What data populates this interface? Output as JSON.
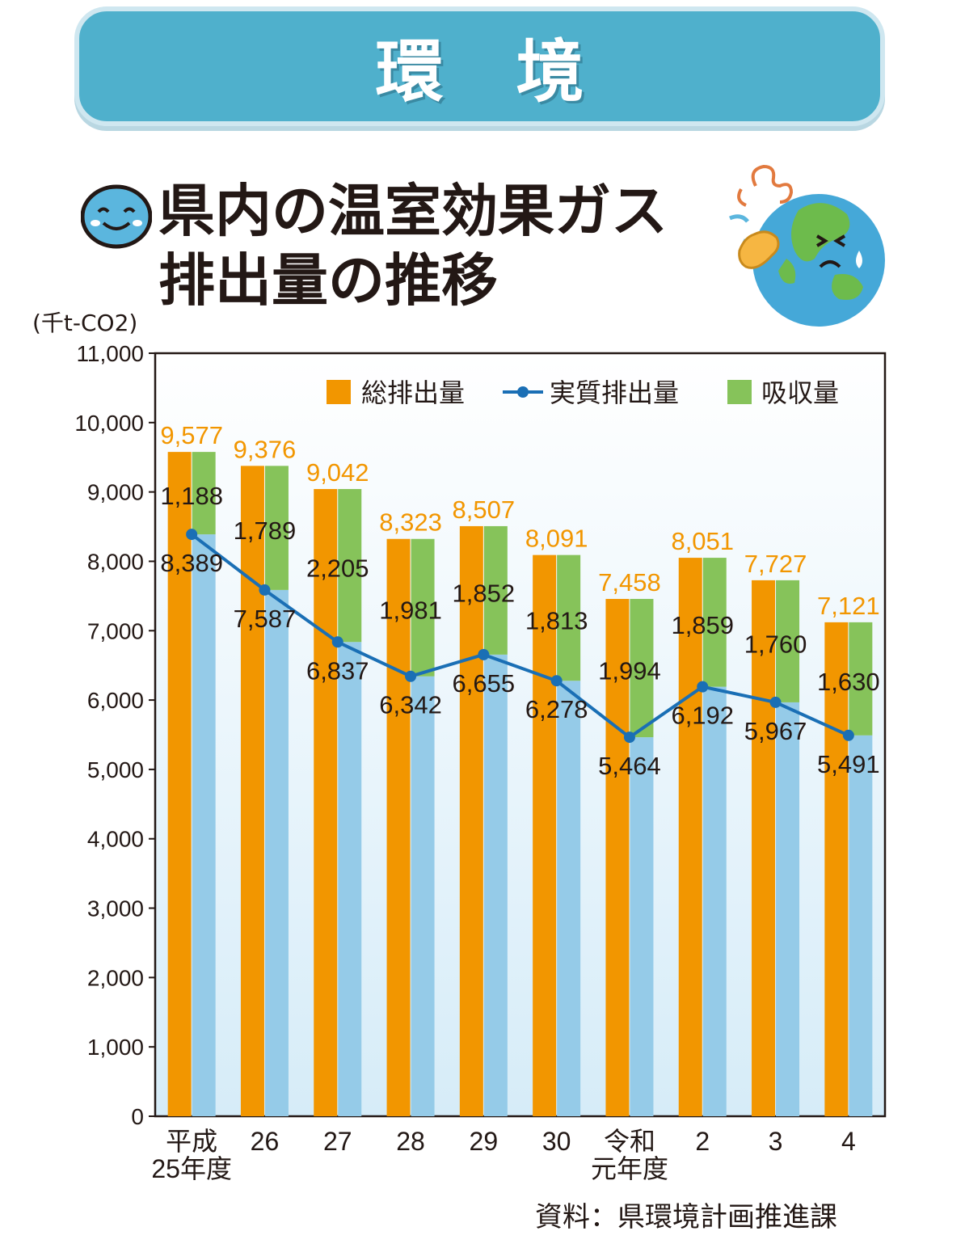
{
  "banner": {
    "title": "環境"
  },
  "header": {
    "title_line1": "県内の温室効果ガス",
    "title_line2": "排出量の推移"
  },
  "source": "資料：県環境計画推進課",
  "colors": {
    "total": "#f29600",
    "net": "#95cbe8",
    "absorb": "#86c35a",
    "line": "#1a6fb5",
    "total_label": "#f29600",
    "plot_bg_top": "#ffffff",
    "plot_bg_bottom": "#d6ecf8",
    "banner": "#4fb0cc"
  },
  "chart_data": {
    "type": "bar",
    "title": "県内の温室効果ガス排出量の推移",
    "ylabel": "(千t-CO2)",
    "xlabel": "",
    "ylim": [
      0,
      11000
    ],
    "yticks": [
      "0",
      "1,000",
      "2,000",
      "3,000",
      "4,000",
      "5,000",
      "6,000",
      "7,000",
      "8,000",
      "9,000",
      "10,000",
      "11,000"
    ],
    "ytick_values": [
      0,
      1000,
      2000,
      3000,
      4000,
      5000,
      6000,
      7000,
      8000,
      9000,
      10000,
      11000
    ],
    "categories": [
      [
        "平成",
        "25年度"
      ],
      [
        "26"
      ],
      [
        "27"
      ],
      [
        "28"
      ],
      [
        "29"
      ],
      [
        "30"
      ],
      [
        "令和",
        "元年度"
      ],
      [
        "2"
      ],
      [
        "3"
      ],
      [
        "4"
      ]
    ],
    "legend": [
      "総排出量",
      "実質排出量",
      "吸収量"
    ],
    "legend_position": "top-right",
    "series": [
      {
        "name": "総排出量",
        "type": "bar",
        "values": [
          9577,
          9376,
          9042,
          8323,
          8507,
          8091,
          7458,
          8051,
          7727,
          7121
        ],
        "labels": [
          "9,577",
          "9,376",
          "9,042",
          "8,323",
          "8,507",
          "8,091",
          "7,458",
          "8,051",
          "7,727",
          "7,121"
        ]
      },
      {
        "name": "実質排出量",
        "type": "line",
        "values": [
          8389,
          7587,
          6837,
          6342,
          6655,
          6278,
          5464,
          6192,
          5967,
          5491
        ],
        "labels": [
          "8,389",
          "7,587",
          "6,837",
          "6,342",
          "6,655",
          "6,278",
          "5,464",
          "6,192",
          "5,967",
          "5,491"
        ]
      },
      {
        "name": "吸収量",
        "type": "stacked-bar",
        "values": [
          1188,
          1789,
          2205,
          1981,
          1852,
          1813,
          1994,
          1859,
          1760,
          1630
        ],
        "labels": [
          "1,188",
          "1,789",
          "2,205",
          "1,981",
          "1,852",
          "1,813",
          "1,994",
          "1,859",
          "1,760",
          "1,630"
        ]
      }
    ]
  }
}
